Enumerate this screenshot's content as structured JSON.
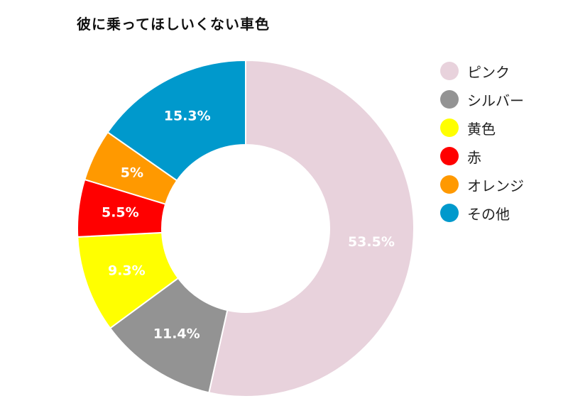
{
  "chart_data": {
    "type": "pie",
    "title": "彼に乗ってほしいくない車色",
    "donut": true,
    "categories": [
      "ピンク",
      "シルバー",
      "黄色",
      "赤",
      "オレンジ",
      "その他"
    ],
    "values": [
      53.5,
      11.4,
      9.3,
      5.5,
      5,
      15.3
    ],
    "labels": [
      "53.5%",
      "11.4%",
      "9.3%",
      "5.5%",
      "5%",
      "15.3%"
    ],
    "colors": [
      "#e8d2dc",
      "#939393",
      "#ffff00",
      "#ff0000",
      "#ff9900",
      "#0099cc"
    ],
    "legend_position": "right"
  }
}
